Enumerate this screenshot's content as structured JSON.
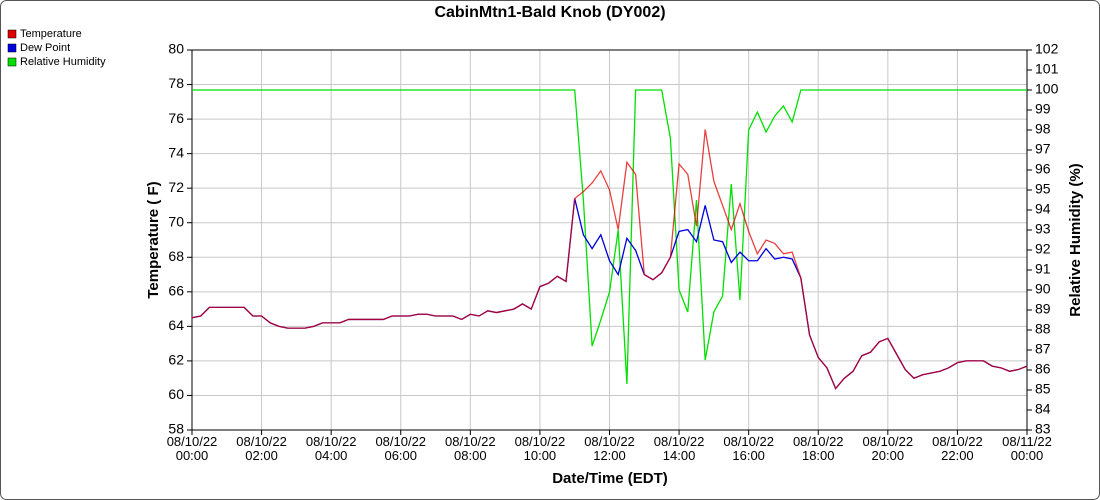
{
  "chart_data": {
    "type": "line",
    "title": "CabinMtn1-Bald Knob (DY002)",
    "x_label": "Date/Time (EDT)",
    "y_label": "Temperature ( F)",
    "y2_label": "Relative Humidity (%)",
    "x": [
      0,
      0.25,
      0.5,
      0.75,
      1,
      1.25,
      1.5,
      1.75,
      2,
      2.25,
      2.5,
      2.75,
      3,
      3.25,
      3.5,
      3.75,
      4,
      4.25,
      4.5,
      4.75,
      5,
      5.25,
      5.5,
      5.75,
      6,
      6.25,
      6.5,
      6.75,
      7,
      7.25,
      7.5,
      7.75,
      8,
      8.25,
      8.5,
      8.75,
      9,
      9.25,
      9.5,
      9.75,
      10,
      10.25,
      10.5,
      10.75,
      11,
      11.25,
      11.5,
      11.75,
      12,
      12.25,
      12.5,
      12.75,
      13,
      13.25,
      13.5,
      13.75,
      14,
      14.25,
      14.5,
      14.75,
      15,
      15.25,
      15.5,
      15.75,
      16,
      16.25,
      16.5,
      16.75,
      17,
      17.25,
      17.5,
      17.75,
      18,
      18.25,
      18.5,
      18.75,
      19,
      19.25,
      19.5,
      19.75,
      20,
      20.25,
      20.5,
      20.75,
      21,
      21.25,
      21.5,
      21.75,
      22,
      22.25,
      22.5,
      22.75,
      23,
      23.25,
      23.5,
      23.75,
      24
    ],
    "series": [
      {
        "name": "Relative Humidity",
        "color": "#00e000",
        "axis": "y2",
        "values": [
          100,
          100,
          100,
          100,
          100,
          100,
          100,
          100,
          100,
          100,
          100,
          100,
          100,
          100,
          100,
          100,
          100,
          100,
          100,
          100,
          100,
          100,
          100,
          100,
          100,
          100,
          100,
          100,
          100,
          100,
          100,
          100,
          100,
          100,
          100,
          100,
          100,
          100,
          100,
          100,
          100,
          100,
          100,
          100,
          100,
          94.5,
          87.2,
          88.5,
          89.9,
          93.0,
          85.3,
          100,
          100,
          100,
          100,
          97.6,
          90.0,
          88.9,
          94.5,
          86.5,
          88.9,
          89.7,
          95.3,
          89.5,
          98.0,
          98.9,
          97.9,
          98.7,
          99.2,
          98.4,
          100,
          100,
          100,
          100,
          100,
          100,
          100,
          100,
          100,
          100,
          100,
          100,
          100,
          100,
          100,
          100,
          100,
          100,
          100,
          100,
          100,
          100,
          100,
          100,
          100,
          100,
          100
        ]
      },
      {
        "name": "Dew Point",
        "color": "#0000e0",
        "values": [
          64.5,
          64.6,
          65.1,
          65.1,
          65.1,
          65.1,
          65.1,
          64.6,
          64.6,
          64.2,
          64.0,
          63.9,
          63.9,
          63.9,
          64.0,
          64.2,
          64.2,
          64.2,
          64.4,
          64.4,
          64.4,
          64.4,
          64.4,
          64.6,
          64.6,
          64.6,
          64.7,
          64.7,
          64.6,
          64.6,
          64.6,
          64.4,
          64.7,
          64.6,
          64.9,
          64.8,
          64.9,
          65.0,
          65.3,
          65.0,
          66.3,
          66.5,
          66.9,
          66.6,
          71.4,
          69.3,
          68.5,
          69.3,
          67.8,
          67.0,
          69.1,
          68.4,
          67.0,
          66.7,
          67.1,
          68.0,
          69.5,
          69.6,
          68.9,
          71.0,
          69.0,
          68.9,
          67.7,
          68.3,
          67.8,
          67.8,
          68.5,
          67.9,
          68.0,
          67.9,
          66.8,
          63.5,
          62.2,
          61.6,
          60.4,
          61.0,
          61.4,
          62.3,
          62.5,
          63.1,
          63.3,
          62.4,
          61.5,
          61.0,
          61.2,
          61.3,
          61.4,
          61.6,
          61.9,
          62.0,
          62.0,
          62.0,
          61.7,
          61.6,
          61.4,
          61.5,
          61.7
        ]
      },
      {
        "name": "Temperature",
        "color": "#e00000",
        "values": [
          64.5,
          64.6,
          65.1,
          65.1,
          65.1,
          65.1,
          65.1,
          64.6,
          64.6,
          64.2,
          64.0,
          63.9,
          63.9,
          63.9,
          64.0,
          64.2,
          64.2,
          64.2,
          64.4,
          64.4,
          64.4,
          64.4,
          64.4,
          64.6,
          64.6,
          64.6,
          64.7,
          64.7,
          64.6,
          64.6,
          64.6,
          64.4,
          64.7,
          64.6,
          64.9,
          64.8,
          64.9,
          65.0,
          65.3,
          65.0,
          66.3,
          66.5,
          66.9,
          66.6,
          71.4,
          71.8,
          72.3,
          73.0,
          71.9,
          69.6,
          73.5,
          72.8,
          67.0,
          66.7,
          67.1,
          68.0,
          73.4,
          72.8,
          69.8,
          75.4,
          72.4,
          71.0,
          69.6,
          71.1,
          69.5,
          68.2,
          69.0,
          68.8,
          68.2,
          68.3,
          66.8,
          63.5,
          62.2,
          61.6,
          60.4,
          61.0,
          61.4,
          62.3,
          62.5,
          63.1,
          63.3,
          62.4,
          61.5,
          61.0,
          61.2,
          61.3,
          61.4,
          61.6,
          61.9,
          62.0,
          62.0,
          62.0,
          61.7,
          61.6,
          61.4,
          61.5,
          61.7
        ]
      }
    ],
    "legend_order": [
      2,
      1,
      0
    ],
    "xlim": [
      0,
      24
    ],
    "xticks": [
      {
        "value": 0,
        "label": "08/10/22\n00:00"
      },
      {
        "value": 2,
        "label": "08/10/22\n02:00"
      },
      {
        "value": 4,
        "label": "08/10/22\n04:00"
      },
      {
        "value": 6,
        "label": "08/10/22\n06:00"
      },
      {
        "value": 8,
        "label": "08/10/22\n08:00"
      },
      {
        "value": 10,
        "label": "08/10/22\n10:00"
      },
      {
        "value": 12,
        "label": "08/10/22\n12:00"
      },
      {
        "value": 14,
        "label": "08/10/22\n14:00"
      },
      {
        "value": 16,
        "label": "08/10/22\n16:00"
      },
      {
        "value": 18,
        "label": "08/10/22\n18:00"
      },
      {
        "value": 20,
        "label": "08/10/22\n20:00"
      },
      {
        "value": 22,
        "label": "08/10/22\n22:00"
      },
      {
        "value": 24,
        "label": "08/11/22\n00:00"
      }
    ],
    "ylim": [
      58,
      80
    ],
    "yticks": [
      58,
      60,
      62,
      64,
      66,
      68,
      70,
      72,
      74,
      76,
      78,
      80
    ],
    "y2lim": [
      83,
      102
    ],
    "y2ticks": [
      83,
      84,
      85,
      86,
      87,
      88,
      89,
      90,
      91,
      92,
      93,
      94,
      95,
      96,
      97,
      98,
      99,
      100,
      101,
      102
    ],
    "grid": true,
    "legend": "upper-left"
  }
}
